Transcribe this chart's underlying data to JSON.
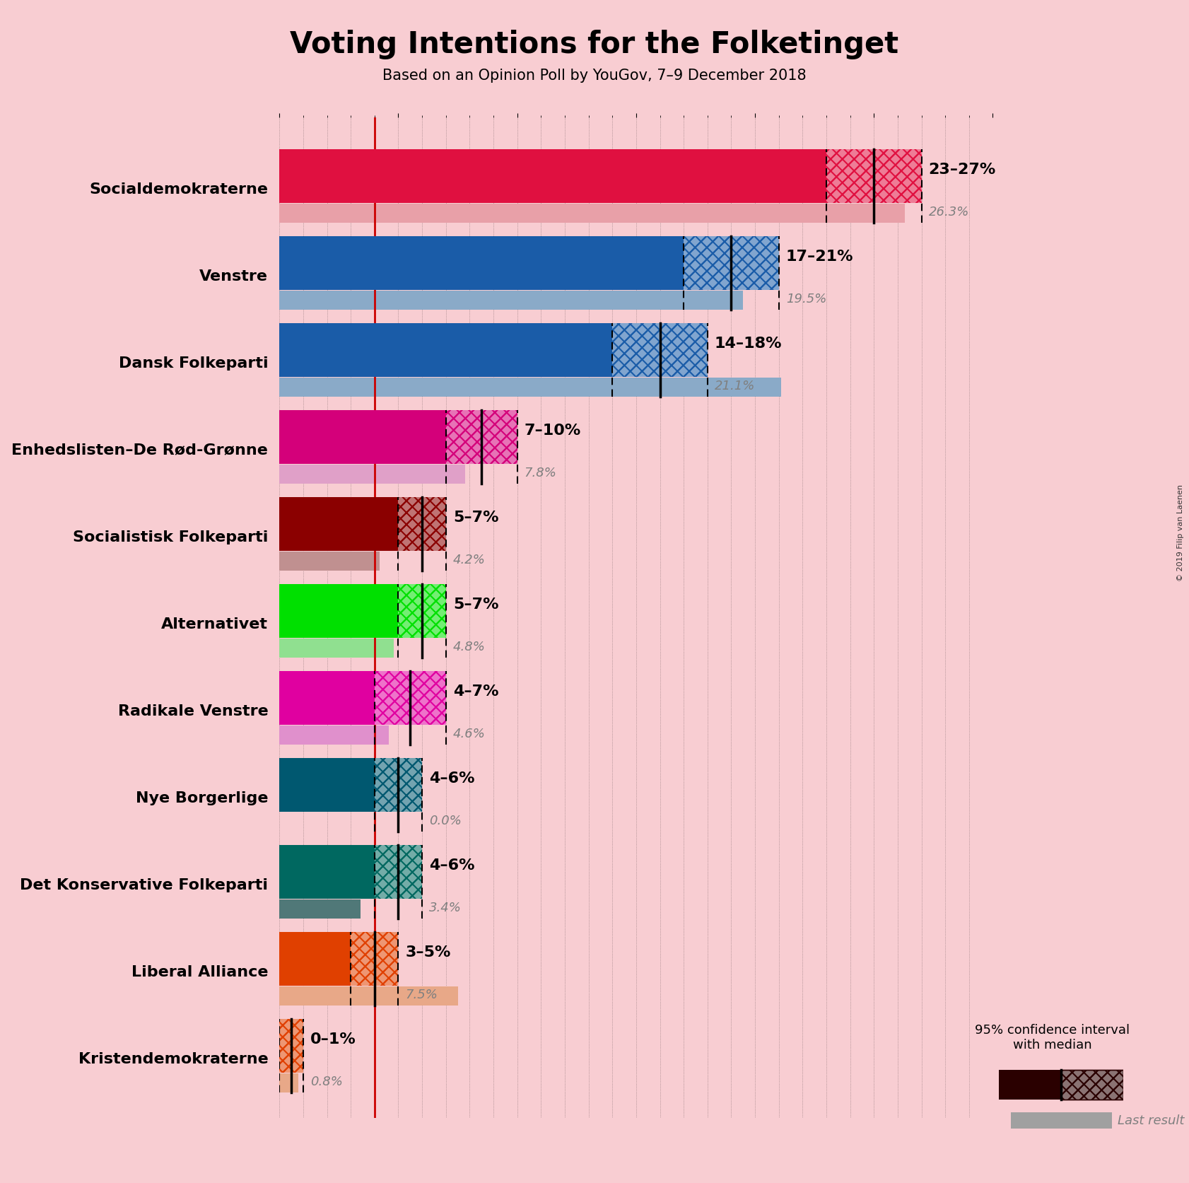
{
  "title": "Voting Intentions for the Folketinget",
  "subtitle": "Based on an Opinion Poll by YouGov, 7–9 December 2018",
  "background_color": "#f8cdd2",
  "parties": [
    "Socialdemokraterne",
    "Venstre",
    "Dansk Folkeparti",
    "Enhedslisten–De Rød-Grønne",
    "Socialistisk Folkeparti",
    "Alternativet",
    "Radikale Venstre",
    "Nye Borgerlige",
    "Det Konservative Folkeparti",
    "Liberal Alliance",
    "Kristendemokraterne"
  ],
  "ci_low": [
    23,
    17,
    14,
    7,
    5,
    5,
    4,
    4,
    4,
    3,
    0
  ],
  "ci_high": [
    27,
    21,
    18,
    10,
    7,
    7,
    7,
    6,
    6,
    5,
    1
  ],
  "median": [
    25,
    19,
    16,
    8.5,
    6,
    6,
    5.5,
    5,
    5,
    4,
    0.5
  ],
  "last_result": [
    26.3,
    19.5,
    21.1,
    7.8,
    4.2,
    4.8,
    4.6,
    0.0,
    3.4,
    7.5,
    0.8
  ],
  "ci_labels": [
    "23–27%",
    "17–21%",
    "14–18%",
    "7–10%",
    "5–7%",
    "5–7%",
    "4–7%",
    "4–6%",
    "4–6%",
    "3–5%",
    "0–1%"
  ],
  "bar_colors": [
    "#e01040",
    "#1a5ca8",
    "#1a5ca8",
    "#d4007a",
    "#8b0000",
    "#00e000",
    "#e000a0",
    "#005870",
    "#006860",
    "#e04000",
    "#e04000"
  ],
  "last_result_colors": [
    "#e8a0a8",
    "#8aaac8",
    "#8aaac8",
    "#e0a0c8",
    "#c09090",
    "#90e090",
    "#e090cc",
    "#507888",
    "#507878",
    "#e8a888",
    "#e8a888"
  ],
  "red_line_x": 4.0,
  "xlim_max": 30,
  "copyright": "© 2019 Filip van Laenen",
  "label_fontsize": 16,
  "sublabel_fontsize": 13,
  "party_fontsize": 16,
  "title_fontsize": 30,
  "subtitle_fontsize": 15
}
